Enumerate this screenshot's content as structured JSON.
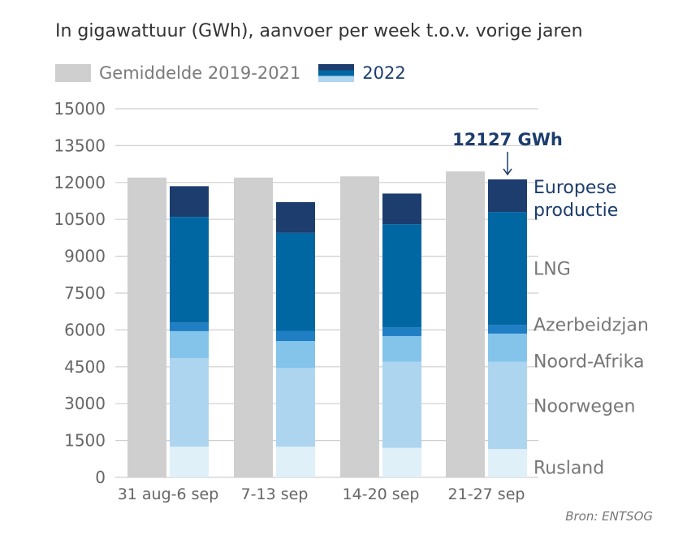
{
  "subtitle": "In gigawattuur (GWh), aanvoer per week t.o.v. vorige jaren",
  "legend": {
    "avg_label": "Gemiddelde 2019-2021",
    "y2022_label": "2022"
  },
  "source": "Bron: ENTSOG",
  "colors": {
    "avg": "#cfcfcf",
    "Rusland": "#dff0f9",
    "Noorwegen": "#aed5ef",
    "Noord-Afrika": "#85c4ea",
    "Azerbeidzjan": "#1f7ec4",
    "LNG": "#0067a3",
    "Europese productie": "#1c3d6e",
    "grid": "#cfcfcf",
    "axis_text": "#666666",
    "label_dark": "#1c3d6e",
    "label_gray": "#777777"
  },
  "chart_data": {
    "type": "bar",
    "ylim": [
      0,
      15000
    ],
    "yticks": [
      0,
      1500,
      3000,
      4500,
      6000,
      7500,
      9000,
      10500,
      12000,
      13500,
      15000
    ],
    "categories": [
      "31 aug-6 sep",
      "7-13 sep",
      "14-20 sep",
      "21-27 sep"
    ],
    "avg_values": [
      12200,
      12200,
      12250,
      12450
    ],
    "series": [
      {
        "name": "Rusland",
        "values": [
          1250,
          1250,
          1200,
          1150
        ]
      },
      {
        "name": "Noorwegen",
        "values": [
          3600,
          3200,
          3500,
          3550
        ]
      },
      {
        "name": "Noord-Afrika",
        "values": [
          1100,
          1100,
          1050,
          1150
        ]
      },
      {
        "name": "Azerbeidzjan",
        "values": [
          350,
          400,
          350,
          350
        ]
      },
      {
        "name": "LNG",
        "values": [
          4300,
          4000,
          4200,
          4600
        ]
      },
      {
        "name": "Europese productie",
        "values": [
          1250,
          1250,
          1250,
          1327
        ]
      }
    ],
    "annotation": {
      "text": "12127 GWh",
      "category_index": 3
    },
    "side_labels": [
      {
        "series": "Europese productie",
        "lines": [
          "Europese",
          "productie"
        ],
        "color": "label_dark"
      },
      {
        "series": "LNG",
        "lines": [
          "LNG"
        ],
        "color": "label_gray"
      },
      {
        "series": "Azerbeidzjan",
        "lines": [
          "Azerbeidzjan"
        ],
        "color": "label_gray"
      },
      {
        "series": "Noord-Afrika",
        "lines": [
          "Noord-Afrika"
        ],
        "color": "label_gray"
      },
      {
        "series": "Noorwegen",
        "lines": [
          "Noorwegen"
        ],
        "color": "label_gray"
      },
      {
        "series": "Rusland",
        "lines": [
          "Rusland"
        ],
        "color": "label_gray"
      }
    ]
  }
}
